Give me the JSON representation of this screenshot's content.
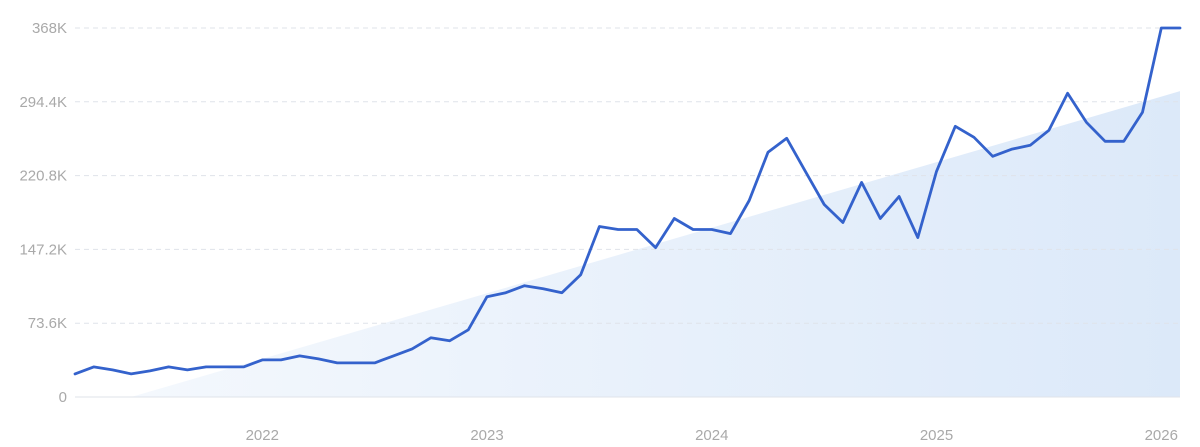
{
  "colors": {
    "line": "#3462cc",
    "trend_fill_light": "#f4f8fd",
    "trend_fill_dark": "#dce9f9",
    "grid": "#dfe3ea",
    "tick_text": "#a9a9a9"
  },
  "chart_data": {
    "type": "line",
    "title": "",
    "xlabel": "",
    "ylabel": "",
    "grid": true,
    "legend": "none",
    "ylim": [
      0,
      368000
    ],
    "xlim": [
      "2021-03",
      "2026-02"
    ],
    "y_ticks": [
      0,
      73600,
      147200,
      220800,
      294400,
      368000
    ],
    "y_tick_labels": [
      "0",
      "73.6K",
      "147.2K",
      "220.8K",
      "294.4K",
      "368K"
    ],
    "x_tick_labels": [
      "2022",
      "2023",
      "2024",
      "2025",
      "2026"
    ],
    "series": [
      {
        "values": [
          [
            "2021-03",
            23000
          ],
          [
            "2021-04",
            30000
          ],
          [
            "2021-05",
            27000
          ],
          [
            "2021-06",
            23000
          ],
          [
            "2021-07",
            26000
          ],
          [
            "2021-08",
            30000
          ],
          [
            "2021-09",
            27000
          ],
          [
            "2021-10",
            30000
          ],
          [
            "2021-11",
            30000
          ],
          [
            "2021-12",
            30000
          ],
          [
            "2022-01",
            37000
          ],
          [
            "2022-02",
            37000
          ],
          [
            "2022-03",
            41000
          ],
          [
            "2022-04",
            38000
          ],
          [
            "2022-05",
            34000
          ],
          [
            "2022-06",
            34000
          ],
          [
            "2022-07",
            34000
          ],
          [
            "2022-08",
            41000
          ],
          [
            "2022-09",
            48000
          ],
          [
            "2022-10",
            59000
          ],
          [
            "2022-11",
            56000
          ],
          [
            "2022-12",
            67000
          ],
          [
            "2023-01",
            100000
          ],
          [
            "2023-02",
            104000
          ],
          [
            "2023-03",
            111000
          ],
          [
            "2023-04",
            108000
          ],
          [
            "2023-05",
            104000
          ],
          [
            "2023-06",
            122000
          ],
          [
            "2023-07",
            170000
          ],
          [
            "2023-08",
            167000
          ],
          [
            "2023-09",
            167000
          ],
          [
            "2023-10",
            149000
          ],
          [
            "2023-11",
            178000
          ],
          [
            "2023-12",
            167000
          ],
          [
            "2024-01",
            167000
          ],
          [
            "2024-02",
            163000
          ],
          [
            "2024-03",
            196000
          ],
          [
            "2024-04",
            244000
          ],
          [
            "2024-05",
            258000
          ],
          [
            "2024-06",
            225000
          ],
          [
            "2024-07",
            192000
          ],
          [
            "2024-08",
            174000
          ],
          [
            "2024-09",
            214000
          ],
          [
            "2024-10",
            178000
          ],
          [
            "2024-11",
            200000
          ],
          [
            "2024-12",
            159000
          ],
          [
            "2025-01",
            225000
          ],
          [
            "2025-02",
            270000
          ],
          [
            "2025-03",
            259000
          ],
          [
            "2025-04",
            240000
          ],
          [
            "2025-05",
            247000
          ],
          [
            "2025-06",
            251000
          ],
          [
            "2025-07",
            266000
          ],
          [
            "2025-08",
            303000
          ],
          [
            "2025-09",
            274000
          ],
          [
            "2025-10",
            255000
          ],
          [
            "2025-11",
            255000
          ],
          [
            "2025-12",
            284000
          ],
          [
            "2026-01",
            368000
          ],
          [
            "2026-02",
            368000
          ]
        ]
      }
    ],
    "trend": {
      "type": "area",
      "start": [
        "2021-06",
        0
      ],
      "end": [
        "2026-02",
        305000
      ]
    }
  }
}
